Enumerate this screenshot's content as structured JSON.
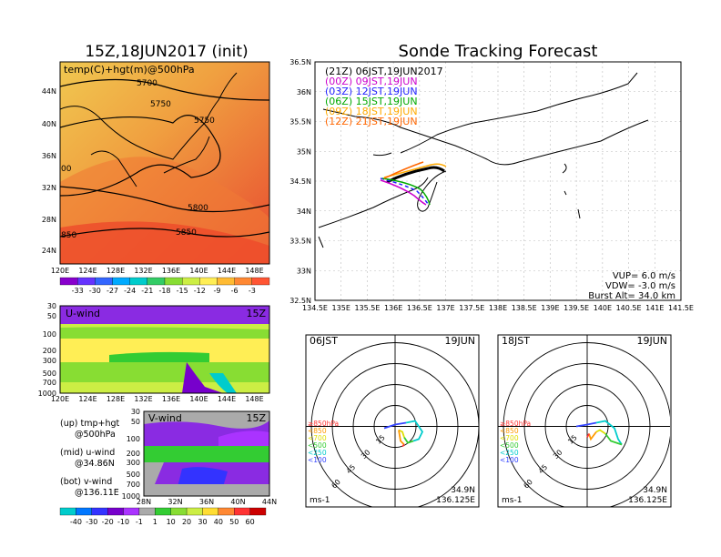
{
  "left": {
    "title": "15Z,18JUN2017 (init)",
    "map_label": "temp(C)+hgt(m)@500hPa",
    "lat_ticks": [
      "44N",
      "40N",
      "36N",
      "32N",
      "28N",
      "24N"
    ],
    "lon_ticks": [
      "120E",
      "124E",
      "128E",
      "132E",
      "136E",
      "140E",
      "144E",
      "148E"
    ],
    "contour_labels": [
      "5700",
      "5750",
      "5750",
      "5800",
      "5850",
      "00",
      "850"
    ],
    "temp_colorbar_labels": [
      "-33",
      "-30",
      "-27",
      "-24",
      "-21",
      "-18",
      "-15",
      "-12",
      "-9",
      "-6",
      "-3"
    ],
    "temp_colorbar_colors": [
      "#8800cc",
      "#6633ff",
      "#3366ff",
      "#00aaff",
      "#00cccc",
      "#33cc66",
      "#88dd33",
      "#ccee44",
      "#ffee55",
      "#ffbb33",
      "#ff8833",
      "#ff5533"
    ],
    "uwind_label": "U-wind",
    "uwind_time": "15Z",
    "vwind_label": "V-wind",
    "vwind_time": "15Z",
    "pressure_ticks": [
      "30",
      "50",
      "100",
      "200",
      "300",
      "500",
      "700",
      "1000"
    ],
    "v_lat_ticks": [
      "28N",
      "32N",
      "36N",
      "40N",
      "44N"
    ],
    "legend_lines": [
      "(up) tmp+hgt",
      "@500hPa",
      "(mid) u-wind",
      "@34.86N",
      "(bot) v-wind",
      "@136.11E"
    ],
    "wind_colorbar_labels": [
      "-40",
      "-30",
      "-20",
      "-10",
      "-1",
      "1",
      "10",
      "20",
      "30",
      "40",
      "50",
      "60"
    ],
    "wind_colorbar_colors": [
      "#00cccc",
      "#0077ff",
      "#3333ff",
      "#7700cc",
      "#aa33ff",
      "#aaaaaa",
      "#33cc33",
      "#88dd33",
      "#ccee44",
      "#ffdd33",
      "#ff8833",
      "#ff3333",
      "#cc0000"
    ]
  },
  "main": {
    "title": "Sonde Tracking Forecast",
    "lat_ticks": [
      "36.5N",
      "36N",
      "35.5N",
      "35N",
      "34.5N",
      "34N",
      "33.5N",
      "33N",
      "32.5N"
    ],
    "lon_ticks": [
      "134.5E",
      "135E",
      "135.5E",
      "136E",
      "136.5E",
      "137E",
      "137.5E",
      "138E",
      "138.5E",
      "139E",
      "139.5E",
      "140E",
      "140.5E",
      "141E",
      "141.5E"
    ],
    "legend": [
      {
        "label": "(21Z)  06JST,19JUN2017",
        "color": "#000000"
      },
      {
        "label": "(00Z)  09JST,19JUN",
        "color": "#cc00cc"
      },
      {
        "label": "(03Z)  12JST,19JUN",
        "color": "#2222ff"
      },
      {
        "label": "(06Z)  15JST,19JUN",
        "color": "#00aa00"
      },
      {
        "label": "(09Z)  18JST,19JUN",
        "color": "#ffaa00"
      },
      {
        "label": "(12Z)  21JST,19JUN",
        "color": "#ff6600"
      }
    ],
    "params": [
      "VUP=  6.0  m/s",
      "VDW= -3.0  m/s",
      "Burst Alt=  34.0  km"
    ]
  },
  "hodo1": {
    "time": "06JST",
    "date": "19JUN",
    "lat": "34.9N",
    "lon": "136.125E",
    "unit": "ms-1",
    "ring_labels": [
      "15",
      "30",
      "45",
      "60"
    ],
    "levels": [
      {
        "label": "≥850hPa",
        "color": "#ff3333"
      },
      {
        "label": "<850",
        "color": "#ff9900"
      },
      {
        "label": "<700",
        "color": "#dddd00"
      },
      {
        "label": "<500",
        "color": "#33cc33"
      },
      {
        "label": "<250",
        "color": "#00cccc"
      },
      {
        "label": "<100",
        "color": "#3344ff"
      }
    ]
  },
  "hodo2": {
    "time": "18JST",
    "date": "19JUN",
    "lat": "34.9N",
    "lon": "136.125E",
    "unit": "ms-1",
    "ring_labels": [
      "15",
      "30",
      "45",
      "60"
    ],
    "levels": [
      {
        "label": "≥850hPa",
        "color": "#ff3333"
      },
      {
        "label": "<850",
        "color": "#ff9900"
      },
      {
        "label": "<700",
        "color": "#dddd00"
      },
      {
        "label": "<500",
        "color": "#33cc33"
      },
      {
        "label": "<250",
        "color": "#00cccc"
      },
      {
        "label": "<100",
        "color": "#3344ff"
      }
    ]
  }
}
